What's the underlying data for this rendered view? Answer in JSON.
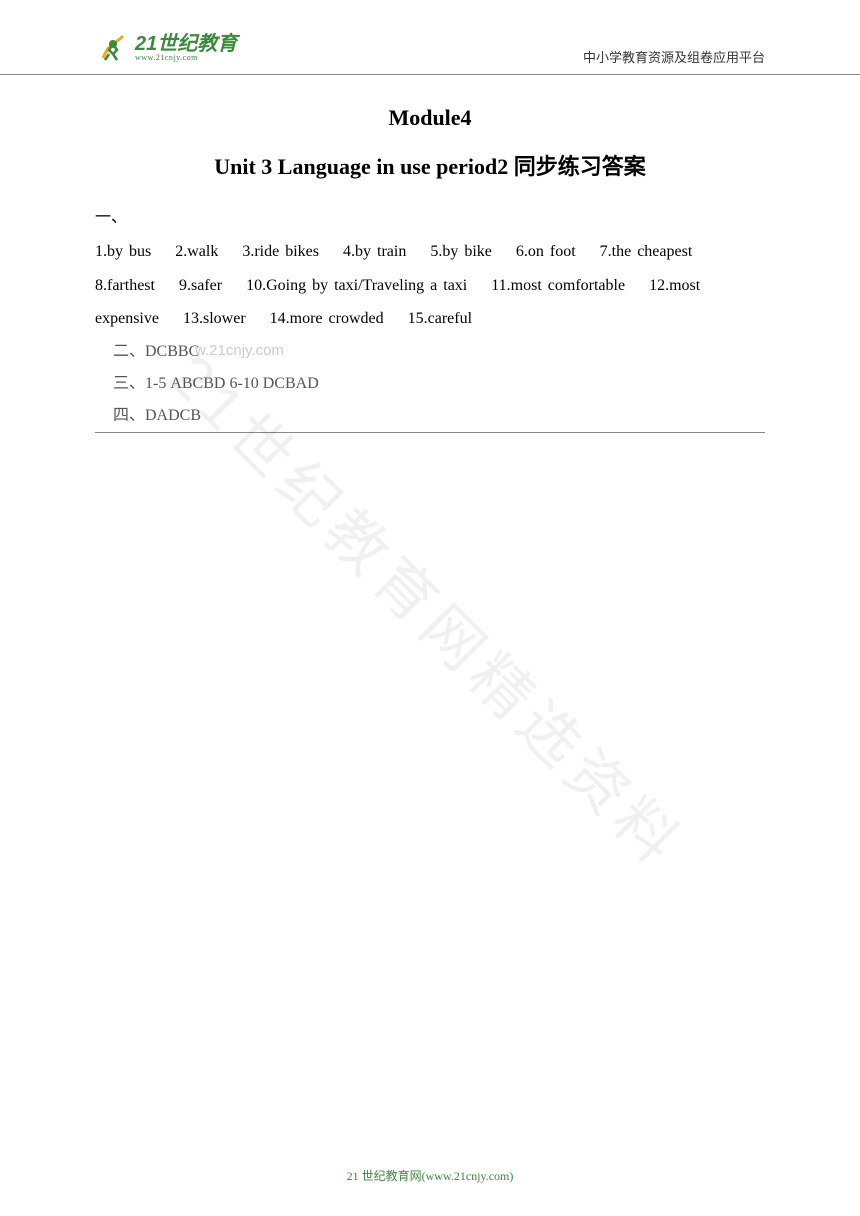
{
  "header": {
    "logo_main": "21世纪教育",
    "logo_sub": "www.21cnjy.com",
    "right_text": "中小学教育资源及组卷应用平台"
  },
  "title1": "Module4",
  "title2": "Unit 3    Language in use period2 同步练习答案",
  "section1": {
    "label": "一、",
    "answers": [
      {
        "n": "1",
        "text": "by bus"
      },
      {
        "n": "2",
        "text": "walk"
      },
      {
        "n": "3",
        "text": "ride bikes"
      },
      {
        "n": "4",
        "text": "by train"
      },
      {
        "n": "5",
        "text": "by bike"
      },
      {
        "n": "6",
        "text": "on foot"
      },
      {
        "n": "7",
        "text": "the cheapest"
      },
      {
        "n": "8",
        "text": "farthest"
      },
      {
        "n": "9",
        "text": "safer"
      },
      {
        "n": "10",
        "text": "Going by taxi/Traveling a taxi"
      },
      {
        "n": "11",
        "text": "most comfortable"
      },
      {
        "n": "12",
        "text": "most expensive"
      },
      {
        "n": "13",
        "text": "slower"
      },
      {
        "n": "14",
        "text": "more crowded"
      },
      {
        "n": "15",
        "text": "careful"
      }
    ]
  },
  "section2": "二、DCBBC",
  "ghost_url": "w.21cnjy.com",
  "section3": "三、1-5   ABCBD        6-10 DCBAD",
  "section4": "四、DADCB",
  "watermark": "21世纪教育网精选资料",
  "footer": "21 世纪教育网(www.21cnjy.com)"
}
